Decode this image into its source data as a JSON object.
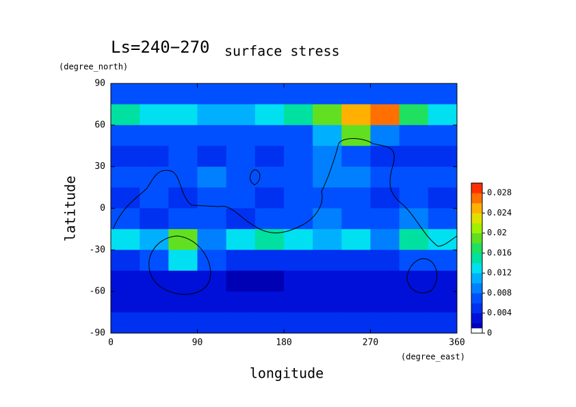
{
  "chart_data": {
    "type": "heatmap",
    "title": "Ls=240−270",
    "subtitle": "surface stress",
    "x_label": "longitude",
    "y_label": "latitude",
    "x_unit": "(degree_east)",
    "y_unit": "(degree_north)",
    "xlim": [
      0,
      360
    ],
    "xticks": [
      0,
      90,
      180,
      270,
      360
    ],
    "ylim": [
      -90,
      90
    ],
    "yticks": [
      -90,
      -60,
      -30,
      0,
      30,
      60,
      90
    ],
    "x": [
      15,
      45,
      75,
      105,
      135,
      165,
      195,
      225,
      255,
      285,
      315,
      345
    ],
    "y": [
      82.5,
      67.5,
      52.5,
      37.5,
      22.5,
      7.5,
      -7.5,
      -22.5,
      -37.5,
      -52.5,
      -67.5,
      -82.5
    ],
    "z": [
      [
        0.007,
        0.006,
        0.006,
        0.006,
        0.006,
        0.006,
        0.006,
        0.006,
        0.007,
        0.007,
        0.007,
        0.007
      ],
      [
        0.014,
        0.013,
        0.012,
        0.011,
        0.01,
        0.012,
        0.014,
        0.018,
        0.024,
        0.026,
        0.016,
        0.012
      ],
      [
        0.007,
        0.006,
        0.006,
        0.006,
        0.006,
        0.006,
        0.006,
        0.01,
        0.018,
        0.008,
        0.006,
        0.006
      ],
      [
        0.005,
        0.005,
        0.006,
        0.005,
        0.006,
        0.005,
        0.006,
        0.008,
        0.006,
        0.005,
        0.005,
        0.005
      ],
      [
        0.006,
        0.006,
        0.007,
        0.008,
        0.006,
        0.006,
        0.006,
        0.008,
        0.009,
        0.006,
        0.006,
        0.006
      ],
      [
        0.005,
        0.006,
        0.005,
        0.006,
        0.006,
        0.005,
        0.006,
        0.007,
        0.006,
        0.005,
        0.006,
        0.005
      ],
      [
        0.006,
        0.005,
        0.006,
        0.006,
        0.005,
        0.006,
        0.006,
        0.008,
        0.007,
        0.006,
        0.008,
        0.006
      ],
      [
        0.012,
        0.01,
        0.018,
        0.008,
        0.012,
        0.014,
        0.012,
        0.01,
        0.012,
        0.008,
        0.014,
        0.012
      ],
      [
        0.004,
        0.006,
        0.012,
        0.006,
        0.004,
        0.004,
        0.004,
        0.004,
        0.004,
        0.004,
        0.006,
        0.006
      ],
      [
        0.003,
        0.003,
        0.003,
        0.002,
        0.001,
        0.001,
        0.002,
        0.003,
        0.003,
        0.003,
        0.003,
        0.002
      ],
      [
        0.003,
        0.003,
        0.003,
        0.003,
        0.003,
        0.003,
        0.003,
        0.003,
        0.003,
        0.003,
        0.003,
        0.003
      ],
      [
        0.004,
        0.004,
        0.004,
        0.004,
        0.004,
        0.004,
        0.004,
        0.004,
        0.004,
        0.004,
        0.004,
        0.004
      ]
    ],
    "clim": [
      0,
      0.03
    ],
    "levels": [
      0,
      0.001,
      0.002,
      0.004,
      0.006,
      0.008,
      0.01,
      0.012,
      0.014,
      0.016,
      0.018,
      0.02,
      0.022,
      0.024,
      0.026,
      0.028,
      0.03
    ],
    "colors": [
      "#ffffff",
      "#0000b4",
      "#0010d8",
      "#0030f0",
      "#0050ff",
      "#0080ff",
      "#00b0ff",
      "#00e0f0",
      "#00e0a0",
      "#20e060",
      "#60e020",
      "#a0f000",
      "#e0e000",
      "#ffb000",
      "#ff7000",
      "#ff3000"
    ],
    "cticks": [
      0,
      0.004,
      0.008,
      0.012,
      0.016,
      0.02,
      0.024,
      0.028
    ]
  }
}
